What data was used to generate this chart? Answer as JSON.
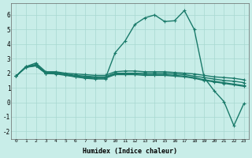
{
  "xlabel": "Humidex (Indice chaleur)",
  "xlim": [
    -0.5,
    23.5
  ],
  "ylim": [
    -2.5,
    6.8
  ],
  "xticks": [
    0,
    1,
    2,
    3,
    4,
    5,
    6,
    7,
    8,
    9,
    10,
    11,
    12,
    13,
    14,
    15,
    16,
    17,
    18,
    19,
    20,
    21,
    22,
    23
  ],
  "yticks": [
    -2,
    -1,
    0,
    1,
    2,
    3,
    4,
    5,
    6
  ],
  "bg_color": "#c8ede8",
  "grid_color": "#a8d8d0",
  "line_color": "#1a7a6a",
  "line_width": 1.0,
  "marker": "+",
  "markersize": 3,
  "markeredgewidth": 0.8,
  "series": [
    [
      1.8,
      2.45,
      2.7,
      2.1,
      2.1,
      2.0,
      1.95,
      1.9,
      1.85,
      1.85,
      2.1,
      2.15,
      2.15,
      2.1,
      2.1,
      2.1,
      2.05,
      2.0,
      1.95,
      1.85,
      1.75,
      1.7,
      1.65,
      1.55
    ],
    [
      1.8,
      2.45,
      2.6,
      2.05,
      2.05,
      1.95,
      1.85,
      1.8,
      1.75,
      1.75,
      2.0,
      2.0,
      2.0,
      2.0,
      2.0,
      2.0,
      1.95,
      1.9,
      1.8,
      1.7,
      1.6,
      1.5,
      1.45,
      1.35
    ],
    [
      1.8,
      2.42,
      2.55,
      2.0,
      2.0,
      1.9,
      1.8,
      1.75,
      1.7,
      1.7,
      1.95,
      1.95,
      1.95,
      1.9,
      1.9,
      1.9,
      1.85,
      1.8,
      1.7,
      1.55,
      1.45,
      1.35,
      1.25,
      1.15
    ],
    [
      1.8,
      2.42,
      2.52,
      1.98,
      1.95,
      1.85,
      1.75,
      1.7,
      1.65,
      1.65,
      1.9,
      1.9,
      1.9,
      1.85,
      1.85,
      1.85,
      1.8,
      1.75,
      1.65,
      1.5,
      1.4,
      1.3,
      1.2,
      1.1
    ],
    [
      1.8,
      2.4,
      2.5,
      2.0,
      2.0,
      1.9,
      1.75,
      1.65,
      1.6,
      1.6,
      3.4,
      4.2,
      5.35,
      5.8,
      6.0,
      5.55,
      5.6,
      6.3,
      5.0,
      1.7,
      0.8,
      0.05,
      -1.6,
      -0.1
    ]
  ]
}
